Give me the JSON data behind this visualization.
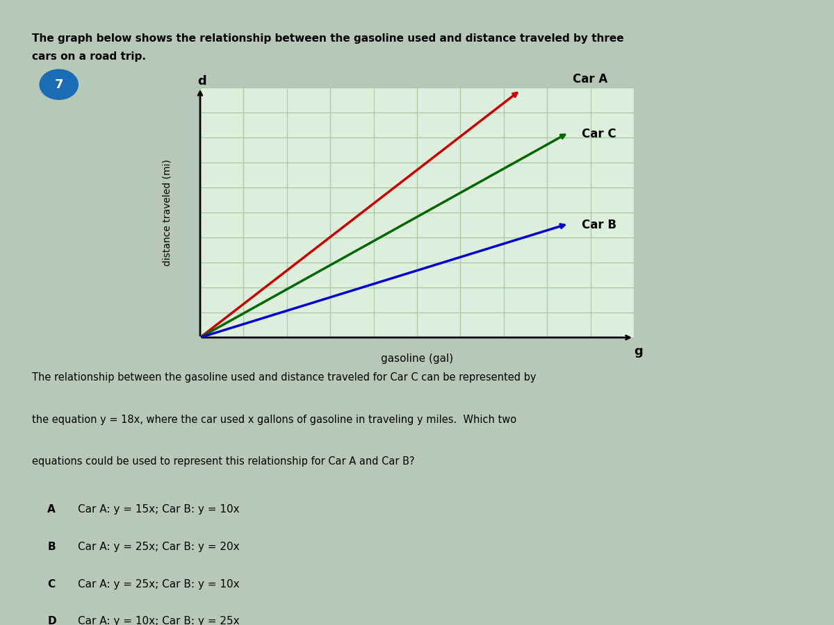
{
  "title_line1": "The graph below shows the relationship between the gasoline used and distance traveled by three",
  "title_line2": "cars on a road trip.",
  "question_number": "7",
  "question_number_bg": "#1a6cb5",
  "xlabel": "gasoline (gal)",
  "ylabel": "distance traveled (mi)",
  "xaxis_label": "g",
  "yaxis_label": "d",
  "car_a_label": "Car A",
  "car_b_label": "Car B",
  "car_c_label": "Car C",
  "car_a_color": "#cc0000",
  "car_b_color": "#0000cc",
  "car_c_color": "#006600",
  "car_a_slope": 25,
  "car_b_slope": 10,
  "car_c_slope": 18,
  "x_max": 10,
  "y_max": 10,
  "grid_color": "#aaccaa",
  "bg_color": "#d8e8d8",
  "body_bg": "#c8d8c8",
  "paragraph": "The relationship between the gasoline used and distance traveled for Car C can be represented by\nthe equation y = 18x, where the car used x gallons of gasoline in traveling y miles.  Which two\nequations could be used to represent this relationship for Car A and Car B?",
  "choices": [
    {
      "letter": "A",
      "text": "Car A: y = 15x; Car B: y = 10x"
    },
    {
      "letter": "B",
      "text": "Car A: y = 25x; Car B: y = 20x"
    },
    {
      "letter": "C",
      "text": "Car A: y = 25x; Car B: y = 10x"
    },
    {
      "letter": "D",
      "text": "Car A: y = 10x; Car B: y = 25x"
    }
  ],
  "plot_bg": "#ddeedd",
  "outer_bg": "#b8c8b8"
}
